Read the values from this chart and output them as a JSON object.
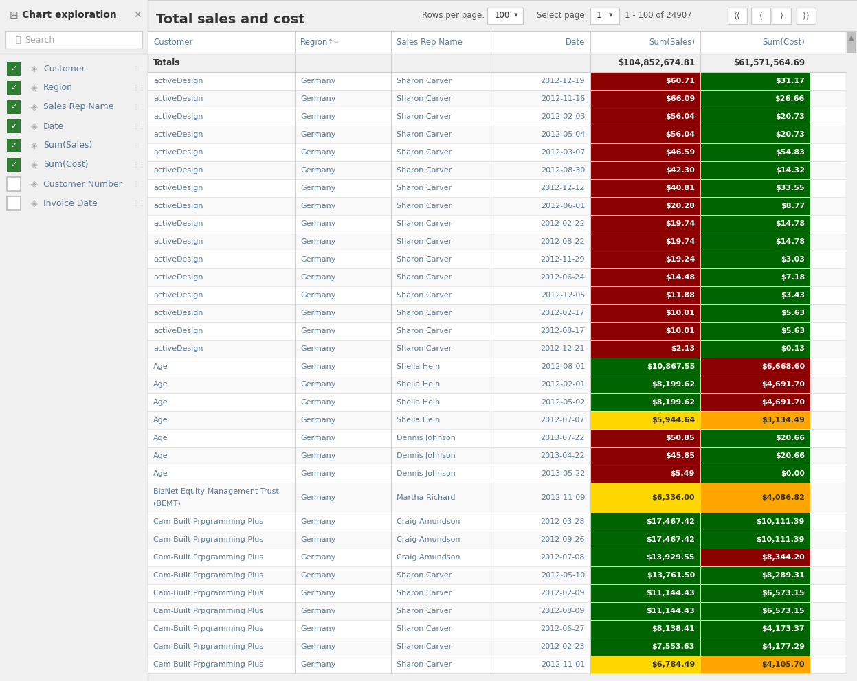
{
  "title": "Total sales and cost",
  "left_panel": {
    "title": "Chart exploration",
    "items": [
      {
        "label": "Customer",
        "checked": true,
        "type": "dimension"
      },
      {
        "label": "Region",
        "checked": true,
        "type": "dimension"
      },
      {
        "label": "Sales Rep Name",
        "checked": true,
        "type": "dimension"
      },
      {
        "label": "Date",
        "checked": true,
        "type": "dimension"
      },
      {
        "label": "Sum(Sales)",
        "checked": true,
        "type": "measure"
      },
      {
        "label": "Sum(Cost)",
        "checked": true,
        "type": "measure"
      },
      {
        "label": "Customer Number",
        "checked": false,
        "type": "dimension"
      },
      {
        "label": "Invoice Date",
        "checked": false,
        "type": "dimension"
      }
    ]
  },
  "columns": [
    "Customer",
    "Region",
    "Sales Rep Name",
    "Date",
    "Sum(Sales)",
    "Sum(Cost)"
  ],
  "totals_row": {
    "label": "Totals",
    "sales": "$104,852,674.81",
    "cost": "$61,571,564.69"
  },
  "rows": [
    {
      "customer": "activeDesign",
      "region": "Germany",
      "rep": "Sharon Carver",
      "date": "2012-12-19",
      "sales": "$60.71",
      "cost": "$31.17",
      "sales_color": "#8B0000",
      "cost_color": "#006400"
    },
    {
      "customer": "activeDesign",
      "region": "Germany",
      "rep": "Sharon Carver",
      "date": "2012-11-16",
      "sales": "$66.09",
      "cost": "$26.66",
      "sales_color": "#8B0000",
      "cost_color": "#006400"
    },
    {
      "customer": "activeDesign",
      "region": "Germany",
      "rep": "Sharon Carver",
      "date": "2012-02-03",
      "sales": "$56.04",
      "cost": "$20.73",
      "sales_color": "#8B0000",
      "cost_color": "#006400"
    },
    {
      "customer": "activeDesign",
      "region": "Germany",
      "rep": "Sharon Carver",
      "date": "2012-05-04",
      "sales": "$56.04",
      "cost": "$20.73",
      "sales_color": "#8B0000",
      "cost_color": "#006400"
    },
    {
      "customer": "activeDesign",
      "region": "Germany",
      "rep": "Sharon Carver",
      "date": "2012-03-07",
      "sales": "$46.59",
      "cost": "$54.83",
      "sales_color": "#8B0000",
      "cost_color": "#006400"
    },
    {
      "customer": "activeDesign",
      "region": "Germany",
      "rep": "Sharon Carver",
      "date": "2012-08-30",
      "sales": "$42.30",
      "cost": "$14.32",
      "sales_color": "#8B0000",
      "cost_color": "#006400"
    },
    {
      "customer": "activeDesign",
      "region": "Germany",
      "rep": "Sharon Carver",
      "date": "2012-12-12",
      "sales": "$40.81",
      "cost": "$33.55",
      "sales_color": "#8B0000",
      "cost_color": "#006400"
    },
    {
      "customer": "activeDesign",
      "region": "Germany",
      "rep": "Sharon Carver",
      "date": "2012-06-01",
      "sales": "$20.28",
      "cost": "$8.77",
      "sales_color": "#8B0000",
      "cost_color": "#006400"
    },
    {
      "customer": "activeDesign",
      "region": "Germany",
      "rep": "Sharon Carver",
      "date": "2012-02-22",
      "sales": "$19.74",
      "cost": "$14.78",
      "sales_color": "#8B0000",
      "cost_color": "#006400"
    },
    {
      "customer": "activeDesign",
      "region": "Germany",
      "rep": "Sharon Carver",
      "date": "2012-08-22",
      "sales": "$19.74",
      "cost": "$14.78",
      "sales_color": "#8B0000",
      "cost_color": "#006400"
    },
    {
      "customer": "activeDesign",
      "region": "Germany",
      "rep": "Sharon Carver",
      "date": "2012-11-29",
      "sales": "$19.24",
      "cost": "$3.03",
      "sales_color": "#8B0000",
      "cost_color": "#006400"
    },
    {
      "customer": "activeDesign",
      "region": "Germany",
      "rep": "Sharon Carver",
      "date": "2012-06-24",
      "sales": "$14.48",
      "cost": "$7.18",
      "sales_color": "#8B0000",
      "cost_color": "#006400"
    },
    {
      "customer": "activeDesign",
      "region": "Germany",
      "rep": "Sharon Carver",
      "date": "2012-12-05",
      "sales": "$11.88",
      "cost": "$3.43",
      "sales_color": "#8B0000",
      "cost_color": "#006400"
    },
    {
      "customer": "activeDesign",
      "region": "Germany",
      "rep": "Sharon Carver",
      "date": "2012-02-17",
      "sales": "$10.01",
      "cost": "$5.63",
      "sales_color": "#8B0000",
      "cost_color": "#006400"
    },
    {
      "customer": "activeDesign",
      "region": "Germany",
      "rep": "Sharon Carver",
      "date": "2012-08-17",
      "sales": "$10.01",
      "cost": "$5.63",
      "sales_color": "#8B0000",
      "cost_color": "#006400"
    },
    {
      "customer": "activeDesign",
      "region": "Germany",
      "rep": "Sharon Carver",
      "date": "2012-12-21",
      "sales": "$2.13",
      "cost": "$0.13",
      "sales_color": "#8B0000",
      "cost_color": "#006400"
    },
    {
      "customer": "Age",
      "region": "Germany",
      "rep": "Sheila Hein",
      "date": "2012-08-01",
      "sales": "$10,867.55",
      "cost": "$6,668.60",
      "sales_color": "#006400",
      "cost_color": "#8B0000"
    },
    {
      "customer": "Age",
      "region": "Germany",
      "rep": "Sheila Hein",
      "date": "2012-02-01",
      "sales": "$8,199.62",
      "cost": "$4,691.70",
      "sales_color": "#006400",
      "cost_color": "#8B0000"
    },
    {
      "customer": "Age",
      "region": "Germany",
      "rep": "Sheila Hein",
      "date": "2012-05-02",
      "sales": "$8,199.62",
      "cost": "$4,691.70",
      "sales_color": "#006400",
      "cost_color": "#8B0000"
    },
    {
      "customer": "Age",
      "region": "Germany",
      "rep": "Sheila Hein",
      "date": "2012-07-07",
      "sales": "$5,944.64",
      "cost": "$3,134.49",
      "sales_color": "#FFD700",
      "cost_color": "#FFA500"
    },
    {
      "customer": "Age",
      "region": "Germany",
      "rep": "Dennis Johnson",
      "date": "2013-07-22",
      "sales": "$50.85",
      "cost": "$20.66",
      "sales_color": "#8B0000",
      "cost_color": "#006400"
    },
    {
      "customer": "Age",
      "region": "Germany",
      "rep": "Dennis Johnson",
      "date": "2013-04-22",
      "sales": "$45.85",
      "cost": "$20.66",
      "sales_color": "#8B0000",
      "cost_color": "#006400"
    },
    {
      "customer": "Age",
      "region": "Germany",
      "rep": "Dennis Johnson",
      "date": "2013-05-22",
      "sales": "$5.49",
      "cost": "$0.00",
      "sales_color": "#8B0000",
      "cost_color": "#006400"
    },
    {
      "customer": "BizNet Equity Management Trust\n(BEMT)",
      "region": "Germany",
      "rep": "Martha Richard",
      "date": "2012-11-09",
      "sales": "$6,336.00",
      "cost": "$4,086.82",
      "sales_color": "#FFD700",
      "cost_color": "#FFA500"
    },
    {
      "customer": "Cam-Built Prpgramming Plus",
      "region": "Germany",
      "rep": "Craig Amundson",
      "date": "2012-03-28",
      "sales": "$17,467.42",
      "cost": "$10,111.39",
      "sales_color": "#006400",
      "cost_color": "#006400"
    },
    {
      "customer": "Cam-Built Prpgramming Plus",
      "region": "Germany",
      "rep": "Craig Amundson",
      "date": "2012-09-26",
      "sales": "$17,467.42",
      "cost": "$10,111.39",
      "sales_color": "#006400",
      "cost_color": "#006400"
    },
    {
      "customer": "Cam-Built Prpgramming Plus",
      "region": "Germany",
      "rep": "Craig Amundson",
      "date": "2012-07-08",
      "sales": "$13,929.55",
      "cost": "$8,344.20",
      "sales_color": "#006400",
      "cost_color": "#8B0000"
    },
    {
      "customer": "Cam-Built Prpgramming Plus",
      "region": "Germany",
      "rep": "Sharon Carver",
      "date": "2012-05-10",
      "sales": "$13,761.50",
      "cost": "$8,289.31",
      "sales_color": "#006400",
      "cost_color": "#006400"
    },
    {
      "customer": "Cam-Built Prpgramming Plus",
      "region": "Germany",
      "rep": "Sharon Carver",
      "date": "2012-02-09",
      "sales": "$11,144.43",
      "cost": "$6,573.15",
      "sales_color": "#006400",
      "cost_color": "#006400"
    },
    {
      "customer": "Cam-Built Prpgramming Plus",
      "region": "Germany",
      "rep": "Sharon Carver",
      "date": "2012-08-09",
      "sales": "$11,144.43",
      "cost": "$6,573.15",
      "sales_color": "#006400",
      "cost_color": "#006400"
    },
    {
      "customer": "Cam-Built Prpgramming Plus",
      "region": "Germany",
      "rep": "Sharon Carver",
      "date": "2012-06-27",
      "sales": "$8,138.41",
      "cost": "$4,173.37",
      "sales_color": "#006400",
      "cost_color": "#006400"
    },
    {
      "customer": "Cam-Built Prpgramming Plus",
      "region": "Germany",
      "rep": "Sharon Carver",
      "date": "2012-02-23",
      "sales": "$7,553.63",
      "cost": "$4,177.29",
      "sales_color": "#006400",
      "cost_color": "#006400"
    },
    {
      "customer": "Cam-Built Prpgramming Plus",
      "region": "Germany",
      "rep": "Sharon Carver",
      "date": "2012-11-01",
      "sales": "$6,784.49",
      "cost": "$4,105.70",
      "sales_color": "#FFD700",
      "cost_color": "#FFA500"
    }
  ],
  "footer": {
    "rows_per_page_label": "Rows per page:",
    "rows_per_page_value": "100",
    "select_page_label": "Select page:",
    "select_page_value": "1",
    "range_text": "1 - 100 of 24907"
  }
}
